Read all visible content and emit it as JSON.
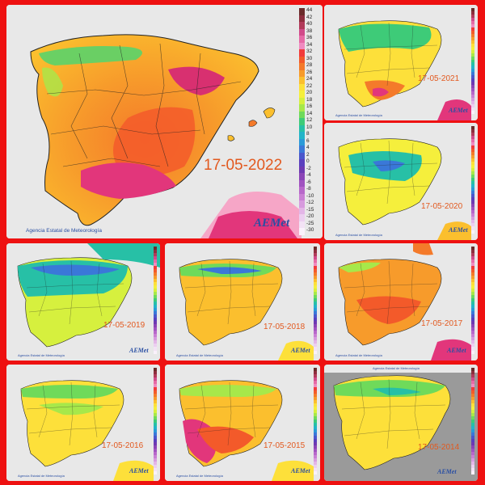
{
  "agency": "Agencia Estatal de Meteorología",
  "logo": "AEMet",
  "logo_sub": "Agencia Estatal de Meteorología",
  "scale_labels": [
    "44",
    "42",
    "40",
    "38",
    "36",
    "34",
    "32",
    "30",
    "28",
    "26",
    "24",
    "22",
    "20",
    "18",
    "16",
    "14",
    "12",
    "10",
    "8",
    "6",
    "4",
    "2",
    "0",
    "-2",
    "-4",
    "-6",
    "-8",
    "-10",
    "-12",
    "-15",
    "-20",
    "-25",
    "-30"
  ],
  "scale_colors": [
    "#6b2b2b",
    "#8e2e3e",
    "#b13b5a",
    "#d14b8a",
    "#e66aa6",
    "#f08ac0",
    "#f23b3b",
    "#f35a2a",
    "#f47a2a",
    "#f79b2b",
    "#fbbf2e",
    "#fde03a",
    "#f5ef3c",
    "#d6f03e",
    "#a7e84a",
    "#6fda5a",
    "#3ecb78",
    "#27c0a6",
    "#23b4c8",
    "#2a9ad8",
    "#3a78d8",
    "#4a57cc",
    "#5a3fbe",
    "#6e39b2",
    "#8a44b6",
    "#a052c0",
    "#b767ca",
    "#c97fd4",
    "#d79bde",
    "#e3b6e7",
    "#eccff0",
    "#f3e2f5",
    "#faf1fb"
  ],
  "maps": [
    {
      "id": "2022",
      "date": "17-05-2022"
    },
    {
      "id": "2021",
      "date": "17-05-2021"
    },
    {
      "id": "2020",
      "date": "17-05-2020"
    },
    {
      "id": "2019",
      "date": "17-05-2019"
    },
    {
      "id": "2018",
      "date": "17-05-2018"
    },
    {
      "id": "2017",
      "date": "17-05-2017"
    },
    {
      "id": "2016",
      "date": "17-05-2016"
    },
    {
      "id": "2015",
      "date": "17-05-2015"
    },
    {
      "id": "2014",
      "date": "17-05-2014"
    }
  ]
}
